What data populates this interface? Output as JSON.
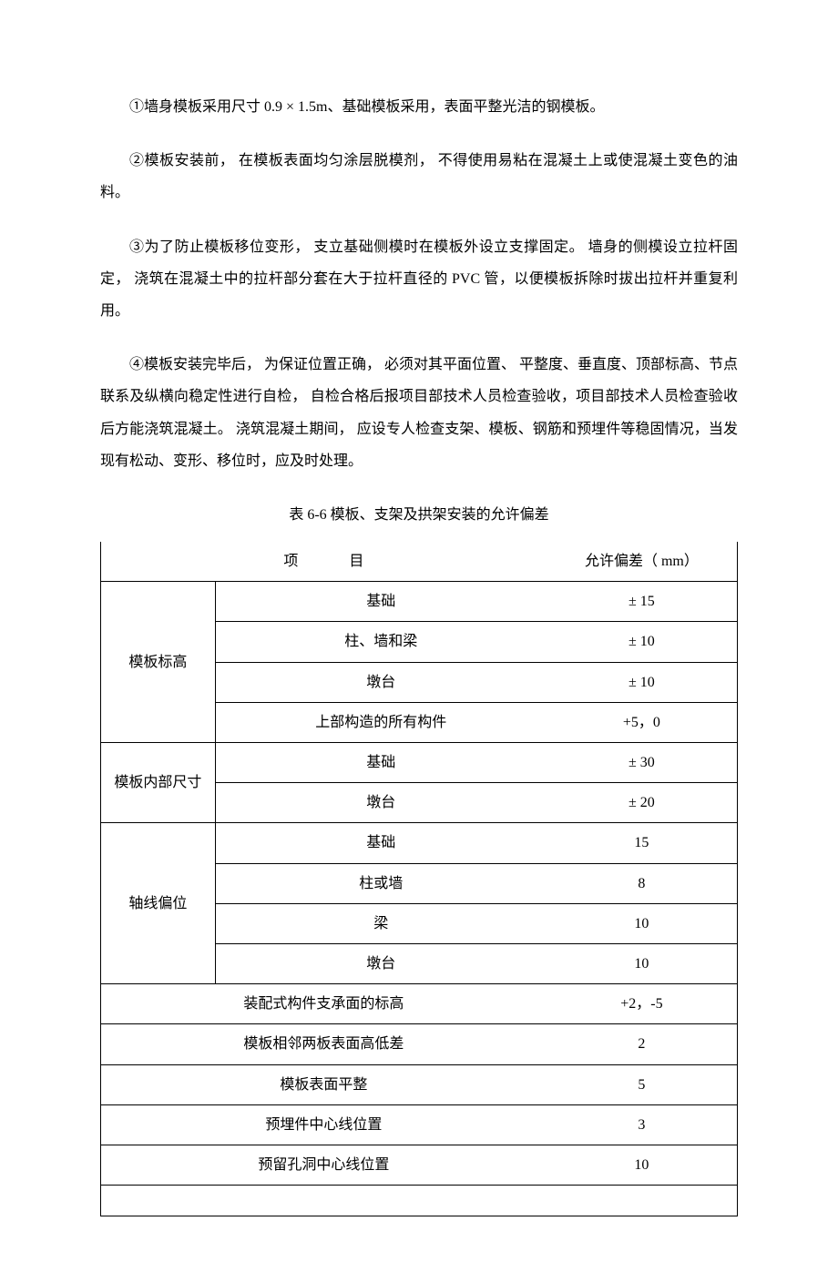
{
  "paragraphs": {
    "p1": "①墙身模板采用尺寸 0.9 × 1.5m、基础模板采用，表面平整光洁的钢模板。",
    "p2": "②模板安装前，  在模板表面均匀涂层脱模剂，  不得使用易粘在混凝土上或使混凝土变色的油料。",
    "p3": "③为了防止模板移位变形，  支立基础侧模时在模板外设立支撑固定。  墙身的侧模设立拉杆固定，  浇筑在混凝土中的拉杆部分套在大于拉杆直径的 PVC 管，以便模板拆除时拔出拉杆并重复利用。",
    "p4": "④模板安装完毕后，  为保证位置正确，  必须对其平面位置、  平整度、垂直度、顶部标高、节点联系及纵横向稳定性进行自检，  自检合格后报项目部技术人员检查验收，项目部技术人员检查验收后方能浇筑混凝土。  浇筑混凝土期间，  应设专人检查支架、模板、钢筋和预埋件等稳固情况，当发现有松动、变形、移位时，应及时处理。"
  },
  "table": {
    "caption": "表 6-6   模板、支架及拱架安装的允许偏差",
    "header": {
      "item_label": "项",
      "item_label2": "目",
      "tolerance_label": "允许偏差（ mm）"
    },
    "groups": [
      {
        "name": "模板标高",
        "rows": [
          {
            "item": "基础",
            "tolerance": "± 15"
          },
          {
            "item": "柱、墙和梁",
            "tolerance": "± 10"
          },
          {
            "item": "墩台",
            "tolerance": "± 10"
          },
          {
            "item": "上部构造的所有构件",
            "tolerance": "+5，0"
          }
        ]
      },
      {
        "name": "模板内部尺寸",
        "rows": [
          {
            "item": "基础",
            "tolerance": "± 30"
          },
          {
            "item": "墩台",
            "tolerance": "± 20"
          }
        ]
      },
      {
        "name": "轴线偏位",
        "rows": [
          {
            "item": "基础",
            "tolerance": "15"
          },
          {
            "item": "柱或墙",
            "tolerance": "8"
          },
          {
            "item": "梁",
            "tolerance": "10"
          },
          {
            "item": "墩台",
            "tolerance": "10"
          }
        ]
      }
    ],
    "single_rows": [
      {
        "item": "装配式构件支承面的标高",
        "tolerance": "+2，-5"
      },
      {
        "item": "模板相邻两板表面高低差",
        "tolerance": "2"
      },
      {
        "item": "模板表面平整",
        "tolerance": "5"
      },
      {
        "item": "预埋件中心线位置",
        "tolerance": "3"
      },
      {
        "item": "预留孔洞中心线位置",
        "tolerance": "10"
      }
    ]
  }
}
